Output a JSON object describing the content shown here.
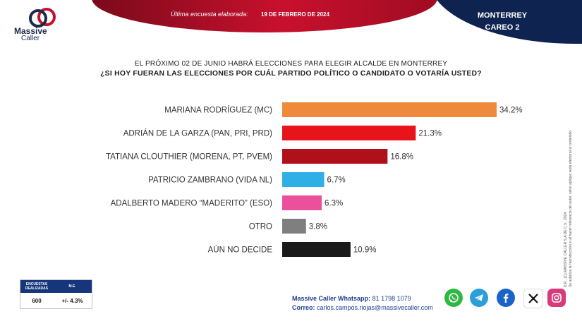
{
  "brand": {
    "name": "Massive",
    "sub": "Caller"
  },
  "header": {
    "survey_label": "Última encuesta elaborada:",
    "survey_date": "19 DE FEBRERO DE 2024",
    "city": "MONTERREY",
    "round": "CAREO 2"
  },
  "question": {
    "line1": "EL PRÓXIMO 02 DE JUNIO HABRÁ ELECCIONES PARA ELEGIR ALCALDE EN MONTERREY",
    "line2": "¿SI HOY FUERAN LAS ELECCIONES POR CUÁL PARTIDO POLÍTICO O CANDIDATO O VOTARÍA USTED?"
  },
  "chart_data": {
    "type": "bar",
    "orientation": "horizontal",
    "categories": [
      "MARIANA RODRÍGUEZ (MC)",
      "ADRIÁN DE LA GARZA  (PAN, PRI, PRD)",
      "TATIANA CLOUTHIER (MORENA, PT, PVEM)",
      "PATRICIO ZAMBRANO (VIDA NL)",
      "ADALBERTO MADERO “MADERITO” (ESO)",
      "OTRO",
      "AÚN NO DECIDE"
    ],
    "values": [
      34.2,
      21.3,
      16.8,
      6.7,
      6.3,
      3.8,
      10.9
    ],
    "value_labels": [
      "34.2%",
      "21.3%",
      "16.8%",
      "6.7%",
      "6.3%",
      "3.8%",
      "10.9%"
    ],
    "colors": [
      "#ef8a3c",
      "#e8141c",
      "#b0101a",
      "#2eb0e6",
      "#ec4f9c",
      "#7f7f7f",
      "#1a1a1a"
    ],
    "xlim": [
      0,
      34.2
    ],
    "grid": false
  },
  "side_note": {
    "line1": "D.R., (C) MASSIVE CALLER S.A DE C.V., 2024",
    "line2": "Se autoriza la reproducción si al hacer referencia del autor, salvo aplique veda electoral al contenido."
  },
  "stats": {
    "h1": "ENCUESTAS REALIZADAS",
    "h2": "M.E.",
    "v1": "600",
    "v2": "+/- 4.3%"
  },
  "contact": {
    "whatsapp_label": "Massive Caller Whatsapp:",
    "whatsapp_number": "81 1798 1079",
    "email_label": "Correo:",
    "email": "carlos.campos.riojas@massivecaller.com"
  },
  "social": {
    "whatsapp": {
      "icon": "whatsapp-icon",
      "color": "#2fb844"
    },
    "telegram": {
      "icon": "telegram-icon",
      "color": "#2a9fd8"
    },
    "facebook": {
      "icon": "facebook-icon",
      "color": "#1a63c9"
    },
    "x": {
      "icon": "x-icon",
      "color": "#111111"
    },
    "instagram": {
      "icon": "instagram-icon",
      "color": "#d93a7a"
    }
  }
}
